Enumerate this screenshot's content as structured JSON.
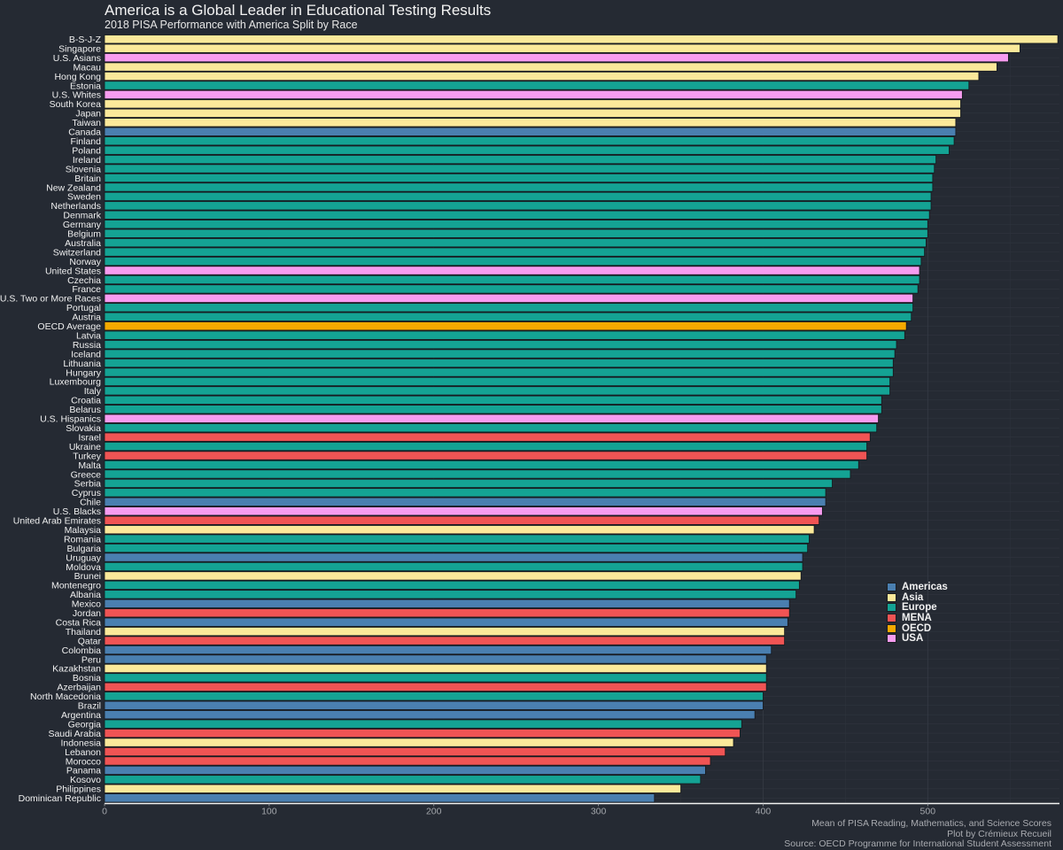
{
  "title": "America is a Global Leader in Educational Testing Results",
  "subtitle": "2018 PISA Performance with America Split by Race",
  "caption": [
    "Mean of PISA Reading, Mathematics, and Science Scores",
    "Plot by Crémieux Recueil",
    "Source: OECD Programme for International Student Assessment"
  ],
  "colors": {
    "Americas": "#4a7fb0",
    "Asia": "#fbe99a",
    "Europe": "#14a394",
    "MENA": "#f05454",
    "OECD": "#f5a900",
    "USA": "#f79cf0",
    "background": "#252a33"
  },
  "legend": [
    "Americas",
    "Asia",
    "Europe",
    "MENA",
    "OECD",
    "USA"
  ],
  "chart_data": {
    "type": "bar",
    "orientation": "horizontal",
    "xlim": [
      0,
      580
    ],
    "xticks": [
      0,
      100,
      200,
      300,
      400,
      500
    ],
    "xlabel": "",
    "ylabel": "",
    "grid": true,
    "legend_position": "bottom-right",
    "bars": [
      {
        "label": "B-S-J-Z",
        "value": 579,
        "group": "Asia"
      },
      {
        "label": "Singapore",
        "value": 556,
        "group": "Asia"
      },
      {
        "label": "U.S. Asians",
        "value": 549,
        "group": "USA"
      },
      {
        "label": "Macau",
        "value": 542,
        "group": "Asia"
      },
      {
        "label": "Hong Kong",
        "value": 531,
        "group": "Asia"
      },
      {
        "label": "Estonia",
        "value": 525,
        "group": "Europe"
      },
      {
        "label": "U.S. Whites",
        "value": 521,
        "group": "USA"
      },
      {
        "label": "South Korea",
        "value": 520,
        "group": "Asia"
      },
      {
        "label": "Japan",
        "value": 520,
        "group": "Asia"
      },
      {
        "label": "Taiwan",
        "value": 517,
        "group": "Asia"
      },
      {
        "label": "Canada",
        "value": 517,
        "group": "Americas"
      },
      {
        "label": "Finland",
        "value": 516,
        "group": "Europe"
      },
      {
        "label": "Poland",
        "value": 513,
        "group": "Europe"
      },
      {
        "label": "Ireland",
        "value": 505,
        "group": "Europe"
      },
      {
        "label": "Slovenia",
        "value": 504,
        "group": "Europe"
      },
      {
        "label": "Britain",
        "value": 503,
        "group": "Europe"
      },
      {
        "label": "New Zealand",
        "value": 503,
        "group": "Europe"
      },
      {
        "label": "Sweden",
        "value": 502,
        "group": "Europe"
      },
      {
        "label": "Netherlands",
        "value": 502,
        "group": "Europe"
      },
      {
        "label": "Denmark",
        "value": 501,
        "group": "Europe"
      },
      {
        "label": "Germany",
        "value": 500,
        "group": "Europe"
      },
      {
        "label": "Belgium",
        "value": 500,
        "group": "Europe"
      },
      {
        "label": "Australia",
        "value": 499,
        "group": "Europe"
      },
      {
        "label": "Switzerland",
        "value": 498,
        "group": "Europe"
      },
      {
        "label": "Norway",
        "value": 496,
        "group": "Europe"
      },
      {
        "label": "United States",
        "value": 495,
        "group": "USA"
      },
      {
        "label": "Czechia",
        "value": 495,
        "group": "Europe"
      },
      {
        "label": "France",
        "value": 494,
        "group": "Europe"
      },
      {
        "label": "U.S. Two or More Races",
        "value": 491,
        "group": "USA"
      },
      {
        "label": "Portugal",
        "value": 491,
        "group": "Europe"
      },
      {
        "label": "Austria",
        "value": 490,
        "group": "Europe"
      },
      {
        "label": "OECD Average",
        "value": 487,
        "group": "OECD"
      },
      {
        "label": "Latvia",
        "value": 486,
        "group": "Europe"
      },
      {
        "label": "Russia",
        "value": 481,
        "group": "Europe"
      },
      {
        "label": "Iceland",
        "value": 480,
        "group": "Europe"
      },
      {
        "label": "Lithuania",
        "value": 479,
        "group": "Europe"
      },
      {
        "label": "Hungary",
        "value": 479,
        "group": "Europe"
      },
      {
        "label": "Luxembourg",
        "value": 477,
        "group": "Europe"
      },
      {
        "label": "Italy",
        "value": 477,
        "group": "Europe"
      },
      {
        "label": "Croatia",
        "value": 472,
        "group": "Europe"
      },
      {
        "label": "Belarus",
        "value": 472,
        "group": "Europe"
      },
      {
        "label": "U.S. Hispanics",
        "value": 470,
        "group": "USA"
      },
      {
        "label": "Slovakia",
        "value": 469,
        "group": "Europe"
      },
      {
        "label": "Israel",
        "value": 465,
        "group": "MENA"
      },
      {
        "label": "Ukraine",
        "value": 463,
        "group": "Europe"
      },
      {
        "label": "Turkey",
        "value": 463,
        "group": "MENA"
      },
      {
        "label": "Malta",
        "value": 458,
        "group": "Europe"
      },
      {
        "label": "Greece",
        "value": 453,
        "group": "Europe"
      },
      {
        "label": "Serbia",
        "value": 442,
        "group": "Europe"
      },
      {
        "label": "Cyprus",
        "value": 438,
        "group": "Europe"
      },
      {
        "label": "Chile",
        "value": 438,
        "group": "Americas"
      },
      {
        "label": "U.S. Blacks",
        "value": 436,
        "group": "USA"
      },
      {
        "label": "United Arab Emirates",
        "value": 434,
        "group": "MENA"
      },
      {
        "label": "Malaysia",
        "value": 431,
        "group": "Asia"
      },
      {
        "label": "Romania",
        "value": 428,
        "group": "Europe"
      },
      {
        "label": "Bulgaria",
        "value": 427,
        "group": "Europe"
      },
      {
        "label": "Uruguay",
        "value": 424,
        "group": "Americas"
      },
      {
        "label": "Moldova",
        "value": 424,
        "group": "Europe"
      },
      {
        "label": "Brunei",
        "value": 423,
        "group": "Asia"
      },
      {
        "label": "Montenegro",
        "value": 422,
        "group": "Europe"
      },
      {
        "label": "Albania",
        "value": 420,
        "group": "Europe"
      },
      {
        "label": "Mexico",
        "value": 416,
        "group": "Americas"
      },
      {
        "label": "Jordan",
        "value": 416,
        "group": "MENA"
      },
      {
        "label": "Costa Rica",
        "value": 415,
        "group": "Americas"
      },
      {
        "label": "Thailand",
        "value": 413,
        "group": "Asia"
      },
      {
        "label": "Qatar",
        "value": 413,
        "group": "MENA"
      },
      {
        "label": "Colombia",
        "value": 405,
        "group": "Americas"
      },
      {
        "label": "Peru",
        "value": 402,
        "group": "Americas"
      },
      {
        "label": "Kazakhstan",
        "value": 402,
        "group": "Asia"
      },
      {
        "label": "Bosnia",
        "value": 402,
        "group": "Europe"
      },
      {
        "label": "Azerbaijan",
        "value": 402,
        "group": "MENA"
      },
      {
        "label": "North Macedonia",
        "value": 400,
        "group": "Europe"
      },
      {
        "label": "Brazil",
        "value": 400,
        "group": "Americas"
      },
      {
        "label": "Argentina",
        "value": 395,
        "group": "Americas"
      },
      {
        "label": "Georgia",
        "value": 387,
        "group": "Europe"
      },
      {
        "label": "Saudi Arabia",
        "value": 386,
        "group": "MENA"
      },
      {
        "label": "Indonesia",
        "value": 382,
        "group": "Asia"
      },
      {
        "label": "Lebanon",
        "value": 377,
        "group": "MENA"
      },
      {
        "label": "Morocco",
        "value": 368,
        "group": "MENA"
      },
      {
        "label": "Panama",
        "value": 365,
        "group": "Americas"
      },
      {
        "label": "Kosovo",
        "value": 362,
        "group": "Europe"
      },
      {
        "label": "Philippines",
        "value": 350,
        "group": "Asia"
      },
      {
        "label": "Dominican Republic",
        "value": 334,
        "group": "Americas"
      }
    ]
  }
}
